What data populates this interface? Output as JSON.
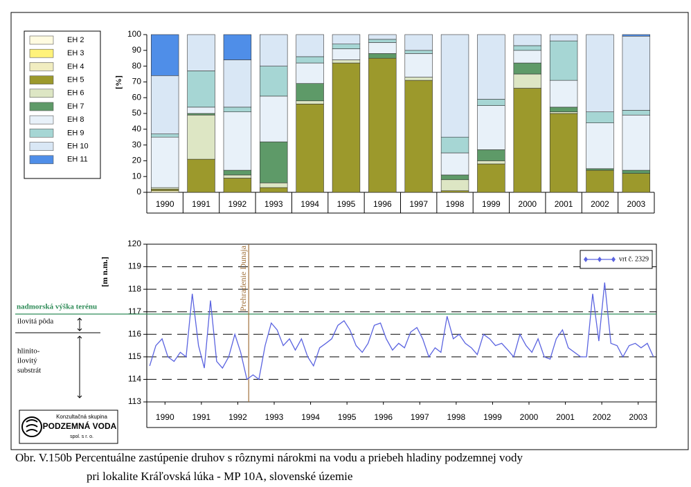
{
  "chart_data": [
    {
      "type": "bar",
      "stacked": true,
      "ylabel": "[%]",
      "categories": [
        "1990",
        "1991",
        "1992",
        "1993",
        "1994",
        "1995",
        "1996",
        "1997",
        "1998",
        "1999",
        "2000",
        "2001",
        "2002",
        "2003"
      ],
      "ylim": [
        0,
        100
      ],
      "yticks": [
        0,
        10,
        20,
        30,
        40,
        50,
        60,
        70,
        80,
        90,
        100
      ],
      "legend": "left",
      "series": [
        {
          "name": "EH 2",
          "color": "#fffbe0",
          "values": [
            0,
            0,
            0,
            0,
            0,
            0,
            0,
            0,
            0,
            0,
            0,
            0,
            0,
            0
          ]
        },
        {
          "name": "EH 3",
          "color": "#fff27a",
          "values": [
            0,
            0,
            0,
            0,
            0,
            0,
            0,
            0,
            0,
            0,
            0,
            0,
            0,
            0
          ]
        },
        {
          "name": "EH 4",
          "color": "#f1edc0",
          "values": [
            1,
            0,
            0,
            0,
            0,
            0,
            0,
            0,
            0,
            0,
            0,
            0,
            0,
            0
          ]
        },
        {
          "name": "EH 5",
          "color": "#9c992c",
          "values": [
            1,
            21,
            9,
            3,
            56,
            82,
            85,
            71,
            1,
            18,
            66,
            50,
            14,
            12
          ]
        },
        {
          "name": "EH 6",
          "color": "#dde6c4",
          "values": [
            1,
            28,
            2,
            3,
            2,
            2,
            0,
            2,
            7,
            2,
            9,
            1,
            0,
            0
          ]
        },
        {
          "name": "EH 7",
          "color": "#5e9a68",
          "values": [
            0,
            1,
            3,
            26,
            11,
            0,
            3,
            0,
            3,
            7,
            7,
            3,
            1,
            2
          ]
        },
        {
          "name": "EH 8",
          "color": "#e8f1f9",
          "values": [
            32,
            4,
            37,
            29,
            13,
            7,
            7,
            15,
            14,
            28,
            8,
            17,
            29,
            35
          ]
        },
        {
          "name": "EH 9",
          "color": "#a6d6d4",
          "values": [
            2,
            23,
            3,
            19,
            4,
            3,
            2,
            2,
            10,
            4,
            3,
            25,
            7,
            3
          ]
        },
        {
          "name": "EH 10",
          "color": "#d9e7f5",
          "values": [
            37,
            23,
            30,
            20,
            14,
            6,
            3,
            10,
            65,
            41,
            7,
            4,
            49,
            47
          ]
        },
        {
          "name": "EH 11",
          "color": "#4f8ee8",
          "values": [
            26,
            0,
            16,
            0,
            0,
            0,
            0,
            0,
            0,
            0,
            0,
            0,
            0,
            1
          ]
        }
      ]
    },
    {
      "type": "line",
      "ylabel": "[m n.m.]",
      "ylim": [
        113,
        120
      ],
      "yticks": [
        113,
        114,
        115,
        116,
        117,
        118,
        119,
        120
      ],
      "xlim": [
        1990,
        2004
      ],
      "grid": true,
      "legend": "top-right",
      "xticks": [
        {
          "value": 1990.5,
          "label": "1990"
        },
        {
          "value": 1991.5,
          "label": "1991"
        },
        {
          "value": 1992.5,
          "label": "1992"
        },
        {
          "value": 1993.5,
          "label": "1993"
        },
        {
          "value": 1994.5,
          "label": "1994"
        },
        {
          "value": 1995.5,
          "label": "1995"
        },
        {
          "value": 1996.5,
          "label": "1996"
        },
        {
          "value": 1997.5,
          "label": "1997"
        },
        {
          "value": 1998.5,
          "label": "1998"
        },
        {
          "value": 1999.5,
          "label": "1999"
        },
        {
          "value": 2000.5,
          "label": "2000"
        },
        {
          "value": 2001.5,
          "label": "2001"
        },
        {
          "value": 2002.5,
          "label": "2002"
        },
        {
          "value": 2003.5,
          "label": "2003"
        }
      ],
      "x": [
        1990.08,
        1990.25,
        1990.42,
        1990.58,
        1990.75,
        1990.92,
        1991.08,
        1991.25,
        1991.42,
        1991.58,
        1991.75,
        1991.92,
        1992.08,
        1992.25,
        1992.42,
        1992.58,
        1992.75,
        1992.92,
        1993.08,
        1993.25,
        1993.42,
        1993.58,
        1993.75,
        1993.92,
        1994.08,
        1994.25,
        1994.42,
        1994.58,
        1994.75,
        1994.92,
        1995.08,
        1995.25,
        1995.42,
        1995.58,
        1995.75,
        1995.92,
        1996.08,
        1996.25,
        1996.42,
        1996.58,
        1996.75,
        1996.92,
        1997.08,
        1997.25,
        1997.42,
        1997.58,
        1997.75,
        1997.92,
        1998.08,
        1998.25,
        1998.42,
        1998.58,
        1998.75,
        1998.92,
        1999.08,
        1999.25,
        1999.42,
        1999.58,
        1999.75,
        1999.92,
        2000.08,
        2000.25,
        2000.42,
        2000.58,
        2000.75,
        2000.92,
        2001.08,
        2001.25,
        2001.42,
        2001.58,
        2001.75,
        2001.92,
        2002.08,
        2002.25,
        2002.42,
        2002.58,
        2002.75,
        2002.92,
        2003.08,
        2003.25,
        2003.42,
        2003.58,
        2003.75,
        2003.92
      ],
      "series": [
        {
          "name": "vrt č. 2329",
          "color": "#5a63e0",
          "values": [
            114.6,
            115.5,
            115.8,
            115.0,
            114.8,
            115.2,
            115.0,
            117.8,
            115.5,
            114.5,
            117.5,
            114.8,
            114.5,
            115.0,
            116.0,
            115.2,
            114.0,
            114.2,
            114.0,
            115.5,
            116.5,
            116.2,
            115.5,
            115.8,
            115.3,
            115.8,
            115.0,
            114.6,
            115.4,
            115.6,
            115.8,
            116.4,
            116.6,
            116.2,
            115.5,
            115.2,
            115.6,
            116.4,
            116.5,
            115.8,
            115.3,
            115.6,
            115.4,
            116.1,
            116.3,
            115.8,
            115.0,
            115.4,
            115.2,
            116.8,
            115.8,
            116.0,
            115.6,
            115.4,
            115.1,
            116.0,
            115.8,
            115.5,
            115.6,
            115.3,
            115.0,
            116.0,
            115.5,
            115.2,
            115.8,
            115.0,
            114.9,
            115.8,
            116.2,
            115.4,
            115.2,
            115.0,
            115.0,
            117.8,
            115.7,
            118.3,
            115.6,
            115.5,
            115.0,
            115.5,
            115.6,
            115.4,
            115.6,
            115.0
          ]
        }
      ],
      "annotations": [
        {
          "text": "nadmorská výška terénu",
          "y": 116.9,
          "color": "#2e8b57"
        },
        {
          "text": "Prehradenie Dunaja",
          "x": 1992.8,
          "color": "#a0703a"
        }
      ],
      "soil_labels": [
        [
          "ilovitá pôda"
        ],
        [
          "hlinito-",
          "ilovitý",
          "substrát"
        ]
      ]
    }
  ],
  "logo": {
    "line1": "Konzultačná skupina",
    "line2": "PODZEMNÁ VODA",
    "line3": "spol. s r. o."
  },
  "caption": [
    "Obr. V.150b Percentuálne zastúpenie druhov s rôznymi nárokmi na vodu a priebeh hladiny podzemnej vody",
    "pri lokalite Kráľovská lúka - MP 10A, slovenské územie"
  ]
}
